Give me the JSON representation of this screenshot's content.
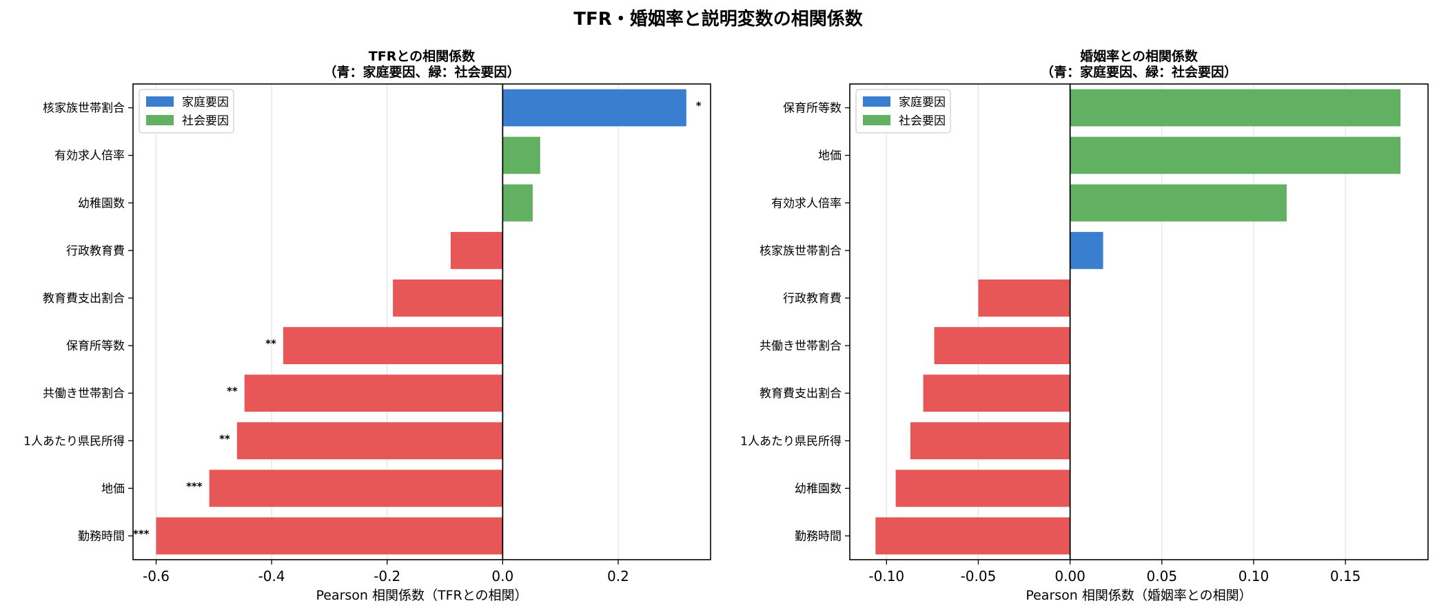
{
  "suptitle": "TFR・婚姻率と説明変数の相関係数",
  "chart_data": [
    {
      "type": "bar",
      "orientation": "horizontal",
      "title": "TFRとの相関係数\n（青：家庭要因、緑：社会要因）",
      "xlabel": "Pearson 相関係数（TFRとの相関）",
      "ylabel": "",
      "xlim": [
        -0.64,
        0.36
      ],
      "xticks": [
        -0.6,
        -0.4,
        -0.2,
        0.0,
        0.2
      ],
      "xtick_labels": [
        "-0.6",
        "-0.4",
        "-0.2",
        "0.0",
        "0.2"
      ],
      "grid": "vertical",
      "legend_position": "top-left",
      "legend": [
        {
          "label": "家庭要因",
          "color": "#3a7ecf"
        },
        {
          "label": "社会要因",
          "color": "#62b062"
        }
      ],
      "categories": [
        "核家族世帯割合",
        "有効求人倍率",
        "幼稚園数",
        "行政教育費",
        "教育費支出割合",
        "保育所等数",
        "共働き世帯割合",
        "1人あたり県民所得",
        "地価",
        "勤務時間"
      ],
      "values": [
        0.318,
        0.065,
        0.052,
        -0.09,
        -0.19,
        -0.38,
        -0.447,
        -0.46,
        -0.508,
        -0.6
      ],
      "bar_colors": [
        "#3a7ecf",
        "#62b062",
        "#62b062",
        "#e85757",
        "#e85757",
        "#e85757",
        "#e85757",
        "#e85757",
        "#e85757",
        "#e85757"
      ],
      "significance": [
        "*",
        "",
        "",
        "",
        "",
        "**",
        "**",
        "**",
        "***",
        "***"
      ]
    },
    {
      "type": "bar",
      "orientation": "horizontal",
      "title": "婚姻率との相関係数\n（青：家庭要因、緑：社会要因）",
      "xlabel": "Pearson 相関係数（婚姻率との相関）",
      "ylabel": "",
      "xlim": [
        -0.12,
        0.195
      ],
      "xticks": [
        -0.1,
        -0.05,
        0.0,
        0.05,
        0.1,
        0.15
      ],
      "xtick_labels": [
        "-0.10",
        "-0.05",
        "0.00",
        "0.05",
        "0.10",
        "0.15"
      ],
      "grid": "vertical",
      "legend_position": "top-left",
      "legend": [
        {
          "label": "家庭要因",
          "color": "#3a7ecf"
        },
        {
          "label": "社会要因",
          "color": "#62b062"
        }
      ],
      "categories": [
        "保育所等数",
        "地価",
        "有効求人倍率",
        "核家族世帯割合",
        "行政教育費",
        "共働き世帯割合",
        "教育費支出割合",
        "1人あたり県民所得",
        "幼稚園数",
        "勤務時間"
      ],
      "values": [
        0.18,
        0.18,
        0.118,
        0.018,
        -0.05,
        -0.074,
        -0.08,
        -0.087,
        -0.095,
        -0.106
      ],
      "bar_colors": [
        "#62b062",
        "#62b062",
        "#62b062",
        "#3a7ecf",
        "#e85757",
        "#e85757",
        "#e85757",
        "#e85757",
        "#e85757",
        "#e85757"
      ],
      "significance": [
        "",
        "",
        "",
        "",
        "",
        "",
        "",
        "",
        "",
        ""
      ]
    }
  ]
}
